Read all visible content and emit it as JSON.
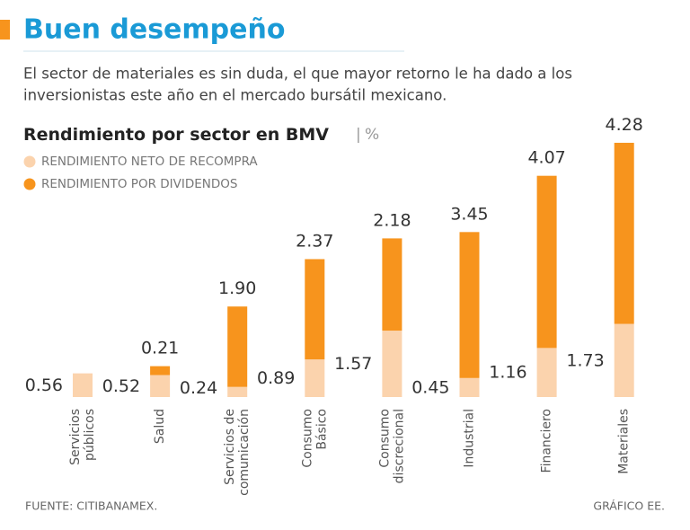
{
  "header": {
    "title": "Buen desempeño",
    "subtitle": [
      "El sector de materiales es sin duda, el que mayor retorno le ha dado a los",
      "inversionistas este año en el mercado bursátil mexicano."
    ]
  },
  "chart_data": {
    "type": "stacked_bar",
    "title": "Rendimiento por sector en BMV",
    "unit": "%",
    "categories": [
      [
        "Servicios",
        "públicos"
      ],
      [
        "Salud"
      ],
      [
        "Servicios de",
        "comunicación"
      ],
      [
        "Consumo",
        "Básico"
      ],
      [
        "Consumo",
        "discrecional"
      ],
      [
        "Industrial"
      ],
      [
        "Financiero"
      ],
      [
        "Materiales"
      ]
    ],
    "series": [
      {
        "name": "RENDIMIENTO NETO DE RECOMPRA",
        "color": "#fbd3ad",
        "values": [
          0.56,
          0.52,
          0.24,
          0.89,
          1.57,
          0.45,
          1.16,
          1.73
        ]
      },
      {
        "name": "RENDIMIENTO POR DIVIDENDOS",
        "color": "#f7941d",
        "values": [
          null,
          0.21,
          1.9,
          2.37,
          2.18,
          3.45,
          4.07,
          4.28
        ],
        "value_labels": [
          null,
          "0.21",
          "1.90",
          "2.37",
          "2.18",
          "3.45",
          "4.07",
          "4.28"
        ]
      }
    ],
    "ylim": [
      0,
      6.2
    ]
  },
  "footer": {
    "source": "FUENTE: CITIBANAMEX.",
    "credit": "GRÁFICO EE."
  }
}
